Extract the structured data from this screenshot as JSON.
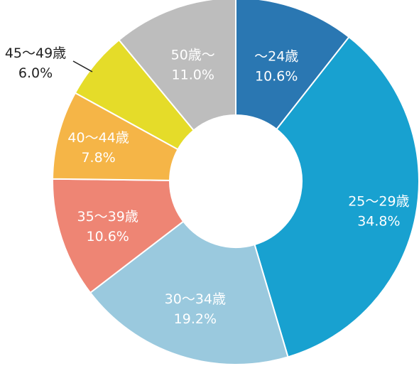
{
  "chart_data": {
    "type": "pie",
    "style": "donut",
    "legend": "none",
    "slices": [
      {
        "label": "～24歳",
        "value": 10.6,
        "value_text": "10.6%",
        "color": "#2a77b2",
        "text_color": "#ffffff"
      },
      {
        "label": "25～29歳",
        "value": 34.8,
        "value_text": "34.8%",
        "color": "#18a1d0",
        "text_color": "#ffffff"
      },
      {
        "label": "30～34歳",
        "value": 19.2,
        "value_text": "19.2%",
        "color": "#9ac9de",
        "text_color": "#ffffff"
      },
      {
        "label": "35～39歳",
        "value": 10.6,
        "value_text": "10.6%",
        "color": "#ee8574",
        "text_color": "#ffffff"
      },
      {
        "label": "40～44歳",
        "value": 7.8,
        "value_text": "7.8%",
        "color": "#f5b547",
        "text_color": "#ffffff"
      },
      {
        "label": "45～49歳",
        "value": 6.0,
        "value_text": "6.0%",
        "color": "#e5dc29",
        "text_color": "#222222"
      },
      {
        "label": "50歳～",
        "value": 11.0,
        "value_text": "11.0%",
        "color": "#bdbdbd",
        "text_color": "#ffffff"
      }
    ]
  }
}
